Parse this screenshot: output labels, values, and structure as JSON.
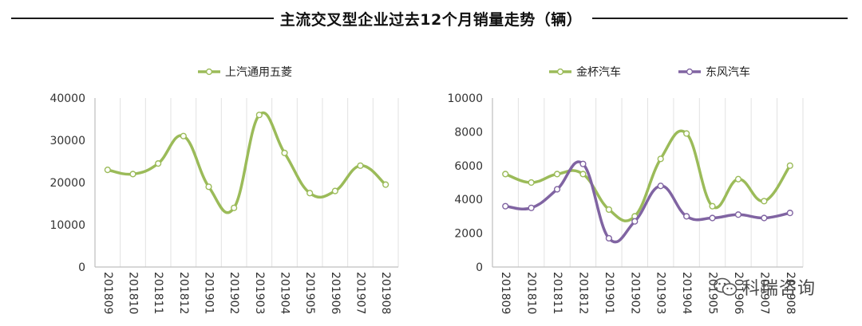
{
  "page_title": "主流交叉型企业过去12个月销量走势（辆）",
  "watermark": {
    "text": "科瑞咨询",
    "icon": "wechat-icon"
  },
  "colors": {
    "green": "#9bbb59",
    "purple": "#8064a2",
    "axis": "#bfbfbf",
    "grid": "#e2e2e2"
  },
  "chart_data": [
    {
      "type": "line",
      "smooth": true,
      "categories": [
        "201809",
        "201810",
        "201811",
        "201812",
        "201901",
        "201902",
        "201903",
        "201904",
        "201905",
        "201906",
        "201907",
        "201908"
      ],
      "ylim": [
        0,
        40000
      ],
      "yticks": [
        0,
        10000,
        20000,
        30000,
        40000
      ],
      "grid": "vertical",
      "legend": "top",
      "series": [
        {
          "name": "上汽通用五菱",
          "color": "#9bbb59",
          "values": [
            23000,
            22000,
            24500,
            31000,
            19000,
            14000,
            36000,
            27000,
            17500,
            18000,
            24000,
            19500
          ]
        }
      ]
    },
    {
      "type": "line",
      "smooth": true,
      "categories": [
        "201809",
        "201810",
        "201811",
        "201812",
        "201901",
        "201902",
        "201903",
        "201904",
        "201905",
        "201906",
        "201907",
        "201908"
      ],
      "ylim": [
        0,
        10000
      ],
      "yticks": [
        0,
        2000,
        4000,
        6000,
        8000,
        10000
      ],
      "grid": "vertical",
      "legend": "top",
      "series": [
        {
          "name": "金杯汽车",
          "color": "#9bbb59",
          "values": [
            5500,
            5000,
            5500,
            5500,
            3400,
            3000,
            6400,
            7900,
            3600,
            5200,
            3900,
            6000
          ]
        },
        {
          "name": "东风汽车",
          "color": "#8064a2",
          "values": [
            3600,
            3500,
            4600,
            6100,
            1700,
            2700,
            4800,
            3000,
            2900,
            3100,
            2900,
            3200
          ]
        }
      ]
    }
  ]
}
